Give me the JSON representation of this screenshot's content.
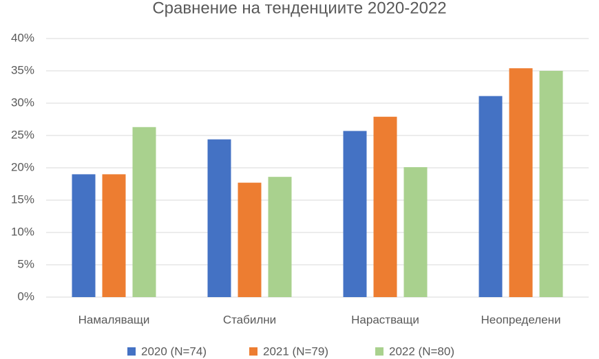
{
  "chart_data": {
    "type": "bar",
    "title": "Сравнение на тенденциите 2020-2022",
    "categories": [
      "Намаляващи",
      "Стабилни",
      "Нарастващи",
      "Неопределени"
    ],
    "series": [
      {
        "name": "2020 (N=74)",
        "color": "#4472c4",
        "values": [
          19.0,
          24.4,
          25.7,
          31.1
        ]
      },
      {
        "name": "2021 (N=79)",
        "color": "#ed7d31",
        "values": [
          19.0,
          17.7,
          27.9,
          35.4
        ]
      },
      {
        "name": "2022 (N=80)",
        "color": "#a9d18e",
        "values": [
          26.3,
          18.6,
          20.1,
          35.0
        ]
      }
    ],
    "ylim": [
      0,
      40
    ],
    "yticks": [
      {
        "value": 0,
        "label": "0%"
      },
      {
        "value": 5,
        "label": "5%"
      },
      {
        "value": 10,
        "label": "10%"
      },
      {
        "value": 15,
        "label": "15%"
      },
      {
        "value": 20,
        "label": "20%"
      },
      {
        "value": 25,
        "label": "25%"
      },
      {
        "value": 30,
        "label": "30%"
      },
      {
        "value": 35,
        "label": "35%"
      },
      {
        "value": 40,
        "label": "40%"
      }
    ],
    "grid": true,
    "legend": "bottom"
  }
}
